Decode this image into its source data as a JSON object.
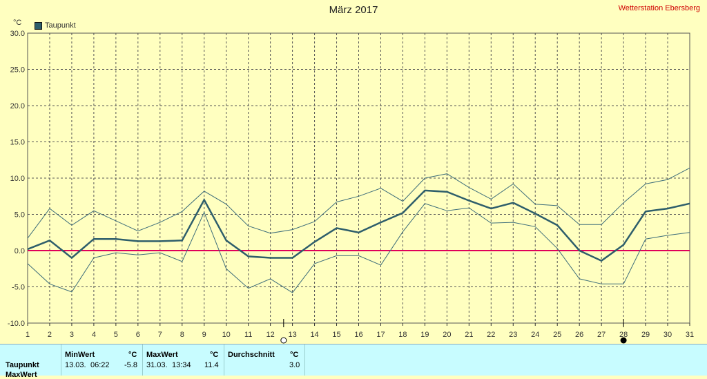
{
  "header": {
    "title": "März 2017",
    "station": "Wetterstation Ebersberg",
    "unit": "°C"
  },
  "legend": {
    "label": "Taupunkt",
    "color": "#2e5e6b"
  },
  "chart_data": {
    "type": "line",
    "title": "März 2017",
    "xlabel": "",
    "ylabel": "°C",
    "ylim": [
      -10,
      30
    ],
    "xlim": [
      1,
      31
    ],
    "grid": true,
    "y_ticks": [
      "30.0",
      "25.0",
      "20.0",
      "15.0",
      "10.0",
      "5.0",
      "0.0",
      "-5.0",
      "-10.0"
    ],
    "x": [
      1,
      2,
      3,
      4,
      5,
      6,
      7,
      8,
      9,
      10,
      11,
      12,
      13,
      14,
      15,
      16,
      17,
      18,
      19,
      20,
      21,
      22,
      23,
      24,
      25,
      26,
      27,
      28,
      29,
      30,
      31
    ],
    "series": [
      {
        "name": "Taupunkt",
        "color": "#2e5e6b",
        "width": 2.5,
        "values": [
          0.2,
          1.4,
          -1.0,
          1.6,
          1.6,
          1.3,
          1.3,
          1.4,
          7.0,
          1.4,
          -0.8,
          -1.0,
          -1.0,
          1.2,
          3.1,
          2.5,
          3.9,
          5.2,
          8.3,
          8.1,
          6.9,
          5.8,
          6.6,
          5.1,
          3.5,
          0.0,
          -1.4,
          0.8,
          5.4,
          5.8,
          6.5
        ]
      },
      {
        "color": "#3d6d7a",
        "width": 1,
        "values": [
          1.7,
          5.8,
          3.5,
          5.5,
          4.1,
          2.7,
          3.9,
          5.4,
          8.2,
          6.4,
          3.4,
          2.4,
          2.9,
          4.0,
          6.7,
          7.5,
          8.6,
          6.8,
          10.0,
          10.6,
          8.7,
          7.1,
          9.2,
          6.4,
          6.2,
          3.6,
          3.6,
          6.6,
          9.2,
          9.8,
          11.4
        ]
      },
      {
        "color": "#3d6d7a",
        "width": 1,
        "values": [
          -1.8,
          -4.6,
          -5.7,
          -1.0,
          -0.3,
          -0.6,
          -0.3,
          -1.5,
          5.3,
          -2.5,
          -5.2,
          -3.9,
          -5.8,
          -1.8,
          -0.7,
          -0.7,
          -2.0,
          2.6,
          6.5,
          5.5,
          5.9,
          3.8,
          3.9,
          3.3,
          0.3,
          -3.9,
          -4.6,
          -4.6,
          1.6,
          2.1,
          2.5
        ]
      }
    ],
    "reference_line": {
      "value": 0,
      "color": "#e0005a"
    },
    "markers": [
      {
        "day": 12.6,
        "icon": "new-moon-icon"
      },
      {
        "day": 28.0,
        "icon": "full-moon-icon"
      }
    ]
  },
  "stats": {
    "row_label": "Taupunkt",
    "row_label_2": "MaxWert",
    "min": {
      "header": "MinWert",
      "unit": "°C",
      "date": "13.03.",
      "time": "06:22",
      "value": "-5.8"
    },
    "max": {
      "header": "MaxWert",
      "unit": "°C",
      "date": "31.03.",
      "time": "13:34",
      "value": "11.4"
    },
    "avg": {
      "header": "Durchschnitt",
      "unit": "°C",
      "value": "3.0"
    }
  }
}
